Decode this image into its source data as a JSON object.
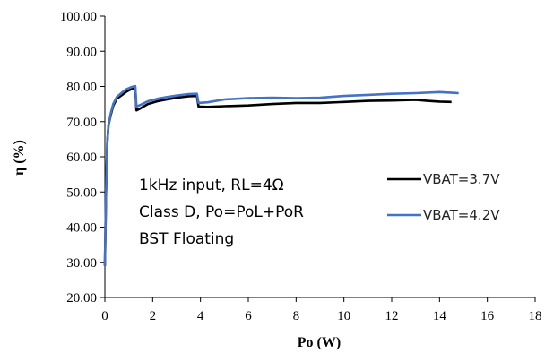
{
  "chart_data": {
    "type": "line",
    "xlabel": "Po (W)",
    "ylabel": "η (%)",
    "xlim": [
      0,
      18
    ],
    "ylim": [
      20,
      100
    ],
    "x_ticks": [
      "0",
      "2",
      "4",
      "6",
      "8",
      "10",
      "12",
      "14",
      "16",
      "18"
    ],
    "y_ticks": [
      "20.00",
      "30.00",
      "40.00",
      "50.00",
      "60.00",
      "70.00",
      "80.00",
      "90.00",
      "100.00"
    ],
    "grid": false,
    "legend_placement": "right",
    "annotations": [
      "1kHz input, RL=4Ω",
      "Class D, Po=PoL+PoR",
      "BST Floating"
    ],
    "series": [
      {
        "name": "VBAT=3.7V",
        "color": "#000000",
        "points": [
          [
            0.0,
            29
          ],
          [
            0.05,
            50
          ],
          [
            0.1,
            64
          ],
          [
            0.15,
            69
          ],
          [
            0.25,
            72
          ],
          [
            0.35,
            74.5
          ],
          [
            0.5,
            76.5
          ],
          [
            0.7,
            77.5
          ],
          [
            0.9,
            78.5
          ],
          [
            1.1,
            79.2
          ],
          [
            1.2,
            79.4
          ],
          [
            1.27,
            79.6
          ],
          [
            1.32,
            73.2
          ],
          [
            1.5,
            73.8
          ],
          [
            1.8,
            75
          ],
          [
            2.2,
            75.8
          ],
          [
            2.6,
            76.3
          ],
          [
            3.0,
            76.8
          ],
          [
            3.5,
            77.2
          ],
          [
            3.85,
            77.3
          ],
          [
            3.92,
            74.3
          ],
          [
            4.3,
            74.2
          ],
          [
            5,
            74.4
          ],
          [
            6,
            74.6
          ],
          [
            7,
            75.0
          ],
          [
            8,
            75.3
          ],
          [
            9,
            75.3
          ],
          [
            10,
            75.6
          ],
          [
            11,
            75.9
          ],
          [
            12,
            76.0
          ],
          [
            12.5,
            76.1
          ],
          [
            13,
            76.2
          ],
          [
            13.5,
            75.9
          ],
          [
            14,
            75.7
          ],
          [
            14.5,
            75.6
          ]
        ]
      },
      {
        "name": "VBAT=4.2V",
        "color": "#4472C4",
        "points": [
          [
            0.0,
            29
          ],
          [
            0.05,
            50
          ],
          [
            0.1,
            64
          ],
          [
            0.15,
            69
          ],
          [
            0.25,
            72.5
          ],
          [
            0.35,
            75
          ],
          [
            0.5,
            77
          ],
          [
            0.7,
            78.2
          ],
          [
            0.9,
            79.2
          ],
          [
            1.1,
            79.8
          ],
          [
            1.2,
            80.0
          ],
          [
            1.27,
            80.1
          ],
          [
            1.32,
            74.3
          ],
          [
            1.5,
            74.8
          ],
          [
            1.8,
            75.8
          ],
          [
            2.2,
            76.5
          ],
          [
            2.6,
            77
          ],
          [
            3.0,
            77.4
          ],
          [
            3.5,
            77.8
          ],
          [
            3.85,
            77.9
          ],
          [
            3.92,
            75.3
          ],
          [
            4.3,
            75.5
          ],
          [
            5,
            76.3
          ],
          [
            6,
            76.7
          ],
          [
            7,
            76.8
          ],
          [
            8,
            76.7
          ],
          [
            9,
            76.8
          ],
          [
            10,
            77.3
          ],
          [
            11,
            77.6
          ],
          [
            12,
            77.9
          ],
          [
            13,
            78.1
          ],
          [
            14,
            78.4
          ],
          [
            14.8,
            78.1
          ]
        ]
      }
    ]
  }
}
